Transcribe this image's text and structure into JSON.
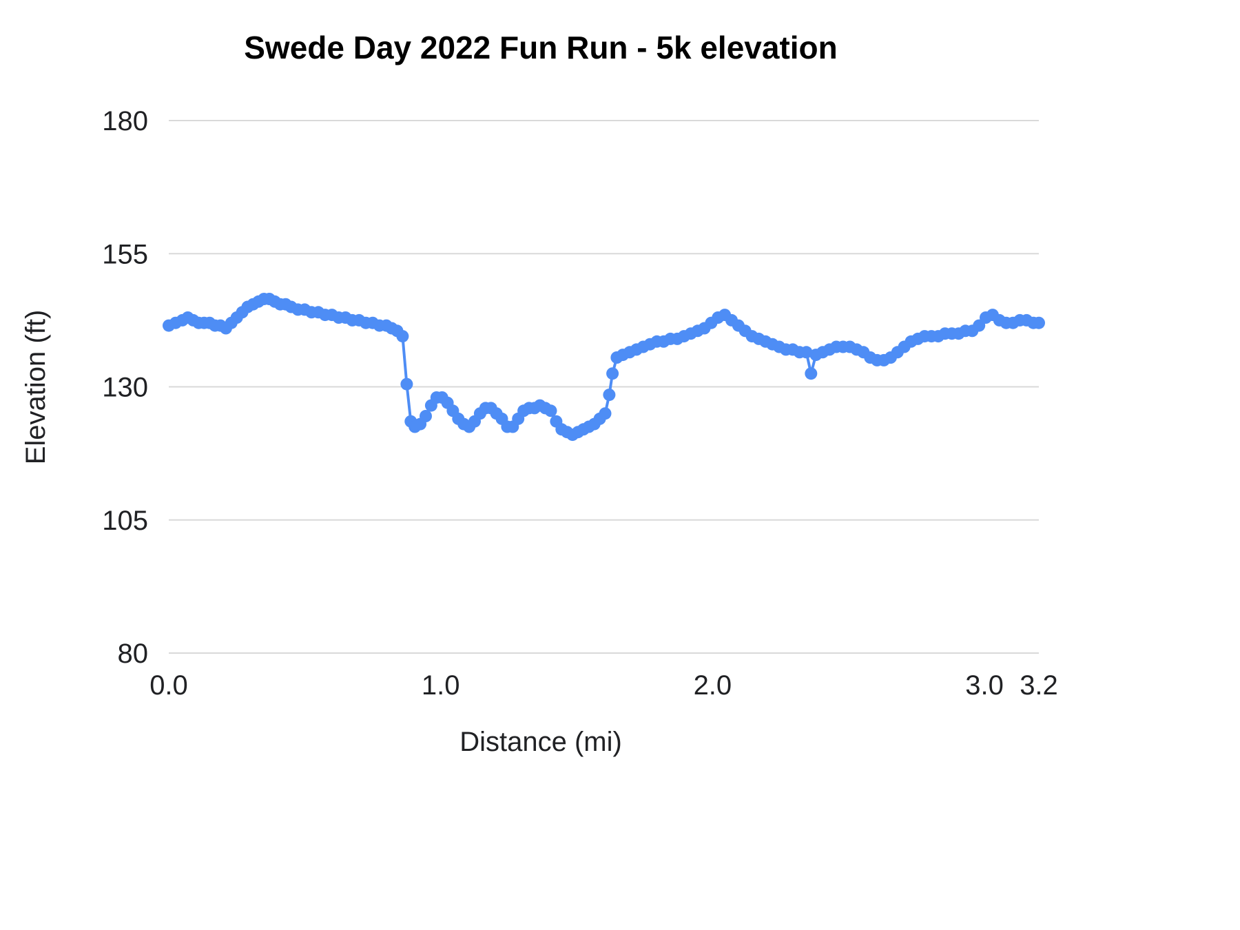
{
  "chart_data": {
    "type": "line",
    "title": "Swede Day 2022 Fun Run - 5k elevation",
    "xlabel": "Distance (mi)",
    "ylabel": "Elevation (ft)",
    "xlim": [
      0,
      3.2
    ],
    "ylim": [
      80,
      180
    ],
    "yticks": [
      80,
      105,
      130,
      155,
      180
    ],
    "ytick_labels": [
      "80",
      "105",
      "130",
      "155",
      "180"
    ],
    "xticks": [
      0,
      1,
      2,
      3,
      3.2
    ],
    "xtick_labels": [
      "0.0",
      "1.0",
      "2.0",
      "3.0",
      "3.2"
    ],
    "grid": "horizontal",
    "legend_position": "none",
    "line_color": "#4e8df5",
    "grid_color": "#d9d9d9",
    "text_color": "#202124",
    "marker_radius": 9,
    "series": [
      {
        "name": "Elevation (ft)",
        "points": [
          [
            0.0,
            141.5
          ],
          [
            0.025,
            142
          ],
          [
            0.05,
            142.5
          ],
          [
            0.07,
            143
          ],
          [
            0.09,
            142.5
          ],
          [
            0.11,
            142
          ],
          [
            0.13,
            142
          ],
          [
            0.15,
            142
          ],
          [
            0.17,
            141.5
          ],
          [
            0.19,
            141.5
          ],
          [
            0.21,
            141
          ],
          [
            0.23,
            142
          ],
          [
            0.25,
            143
          ],
          [
            0.27,
            144
          ],
          [
            0.29,
            145
          ],
          [
            0.31,
            145.5
          ],
          [
            0.33,
            146
          ],
          [
            0.35,
            146.5
          ],
          [
            0.37,
            146.5
          ],
          [
            0.39,
            146
          ],
          [
            0.41,
            145.5
          ],
          [
            0.43,
            145.5
          ],
          [
            0.45,
            145
          ],
          [
            0.475,
            144.5
          ],
          [
            0.5,
            144.5
          ],
          [
            0.525,
            144
          ],
          [
            0.55,
            144
          ],
          [
            0.575,
            143.5
          ],
          [
            0.6,
            143.5
          ],
          [
            0.625,
            143
          ],
          [
            0.65,
            143
          ],
          [
            0.675,
            142.5
          ],
          [
            0.7,
            142.5
          ],
          [
            0.725,
            142
          ],
          [
            0.75,
            142
          ],
          [
            0.775,
            141.5
          ],
          [
            0.8,
            141.5
          ],
          [
            0.82,
            141
          ],
          [
            0.84,
            140.5
          ],
          [
            0.86,
            139.5
          ],
          [
            0.875,
            130.5
          ],
          [
            0.89,
            123.5
          ],
          [
            0.905,
            122.5
          ],
          [
            0.925,
            123
          ],
          [
            0.945,
            124.5
          ],
          [
            0.965,
            126.5
          ],
          [
            0.985,
            128
          ],
          [
            1.005,
            128
          ],
          [
            1.025,
            127
          ],
          [
            1.045,
            125.5
          ],
          [
            1.065,
            124
          ],
          [
            1.085,
            123
          ],
          [
            1.105,
            122.5
          ],
          [
            1.125,
            123.5
          ],
          [
            1.145,
            125
          ],
          [
            1.165,
            126
          ],
          [
            1.185,
            126
          ],
          [
            1.205,
            125
          ],
          [
            1.225,
            124
          ],
          [
            1.245,
            122.5
          ],
          [
            1.265,
            122.5
          ],
          [
            1.285,
            124
          ],
          [
            1.305,
            125.5
          ],
          [
            1.325,
            126
          ],
          [
            1.345,
            126
          ],
          [
            1.365,
            126.5
          ],
          [
            1.385,
            126
          ],
          [
            1.405,
            125.5
          ],
          [
            1.425,
            123.5
          ],
          [
            1.445,
            122
          ],
          [
            1.465,
            121.5
          ],
          [
            1.485,
            121
          ],
          [
            1.505,
            121.5
          ],
          [
            1.525,
            122
          ],
          [
            1.545,
            122.5
          ],
          [
            1.565,
            123
          ],
          [
            1.585,
            124
          ],
          [
            1.605,
            125
          ],
          [
            1.62,
            128.5
          ],
          [
            1.632,
            132.5
          ],
          [
            1.648,
            135.5
          ],
          [
            1.67,
            136
          ],
          [
            1.695,
            136.5
          ],
          [
            1.72,
            137
          ],
          [
            1.745,
            137.5
          ],
          [
            1.77,
            138
          ],
          [
            1.795,
            138.5
          ],
          [
            1.82,
            138.5
          ],
          [
            1.845,
            139
          ],
          [
            1.87,
            139
          ],
          [
            1.895,
            139.5
          ],
          [
            1.92,
            140
          ],
          [
            1.945,
            140.5
          ],
          [
            1.97,
            141
          ],
          [
            1.995,
            142
          ],
          [
            2.02,
            143
          ],
          [
            2.045,
            143.5
          ],
          [
            2.07,
            142.5
          ],
          [
            2.095,
            141.5
          ],
          [
            2.12,
            140.5
          ],
          [
            2.145,
            139.5
          ],
          [
            2.17,
            139
          ],
          [
            2.195,
            138.5
          ],
          [
            2.22,
            138
          ],
          [
            2.245,
            137.5
          ],
          [
            2.27,
            137
          ],
          [
            2.295,
            137
          ],
          [
            2.32,
            136.5
          ],
          [
            2.345,
            136.5
          ],
          [
            2.362,
            132.5
          ],
          [
            2.38,
            136
          ],
          [
            2.405,
            136.5
          ],
          [
            2.43,
            137
          ],
          [
            2.455,
            137.5
          ],
          [
            2.48,
            137.5
          ],
          [
            2.505,
            137.5
          ],
          [
            2.53,
            137
          ],
          [
            2.555,
            136.5
          ],
          [
            2.58,
            135.5
          ],
          [
            2.605,
            135
          ],
          [
            2.63,
            135
          ],
          [
            2.655,
            135.5
          ],
          [
            2.68,
            136.5
          ],
          [
            2.705,
            137.5
          ],
          [
            2.73,
            138.5
          ],
          [
            2.755,
            139
          ],
          [
            2.78,
            139.5
          ],
          [
            2.805,
            139.5
          ],
          [
            2.83,
            139.5
          ],
          [
            2.855,
            140
          ],
          [
            2.88,
            140
          ],
          [
            2.905,
            140
          ],
          [
            2.93,
            140.5
          ],
          [
            2.955,
            140.5
          ],
          [
            2.98,
            141.5
          ],
          [
            3.005,
            143
          ],
          [
            3.03,
            143.5
          ],
          [
            3.055,
            142.5
          ],
          [
            3.08,
            142
          ],
          [
            3.105,
            142
          ],
          [
            3.13,
            142.5
          ],
          [
            3.155,
            142.5
          ],
          [
            3.18,
            142
          ],
          [
            3.2,
            142
          ]
        ]
      }
    ]
  }
}
